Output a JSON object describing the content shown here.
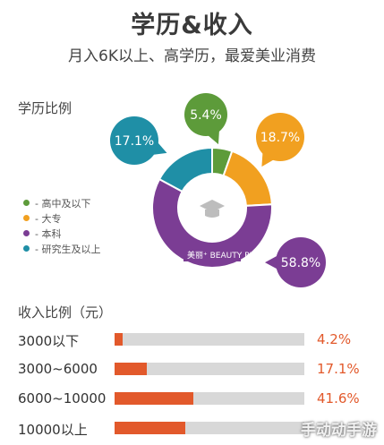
{
  "title": "学历&收入",
  "subtitle": "月入6K以上、高学历，最爱美业消费",
  "education_label": "学历比例",
  "income_label": "收入比例（元）",
  "legend_items": [
    {
      "text": "- 高中及以下",
      "color": "#5d9b3a"
    },
    {
      "text": "- 大专",
      "color": "#f1a020"
    },
    {
      "text": "- 本科",
      "color": "#7b3d94"
    },
    {
      "text": "- 研究生及以上",
      "color": "#1f8fa6"
    }
  ],
  "center_logo_text": "美丽⁺ BEAUTY PLUS",
  "watermark": "手动动手游",
  "chart_data": [
    {
      "type": "pie",
      "title": "学历比例",
      "categories": [
        "高中及以下",
        "大专",
        "本科",
        "研究生及以上"
      ],
      "values": [
        5.4,
        18.7,
        58.8,
        17.1
      ],
      "labels": [
        "5.4%",
        "18.7%",
        "58.8%",
        "17.1%"
      ],
      "colors": [
        "#5d9b3a",
        "#f1a020",
        "#7b3d94",
        "#1f8fa6"
      ]
    },
    {
      "type": "bar",
      "title": "收入比例（元）",
      "categories": [
        "3000以下",
        "3000~6000",
        "6000~10000",
        "10000以上"
      ],
      "values": [
        4.2,
        17.1,
        41.6,
        37.1
      ],
      "labels": [
        "4.2%",
        "17.1%",
        "41.6%",
        ""
      ],
      "xlim": [
        0,
        100
      ],
      "bar_color": "#e2592b",
      "track_color": "#d8d8d8"
    }
  ]
}
